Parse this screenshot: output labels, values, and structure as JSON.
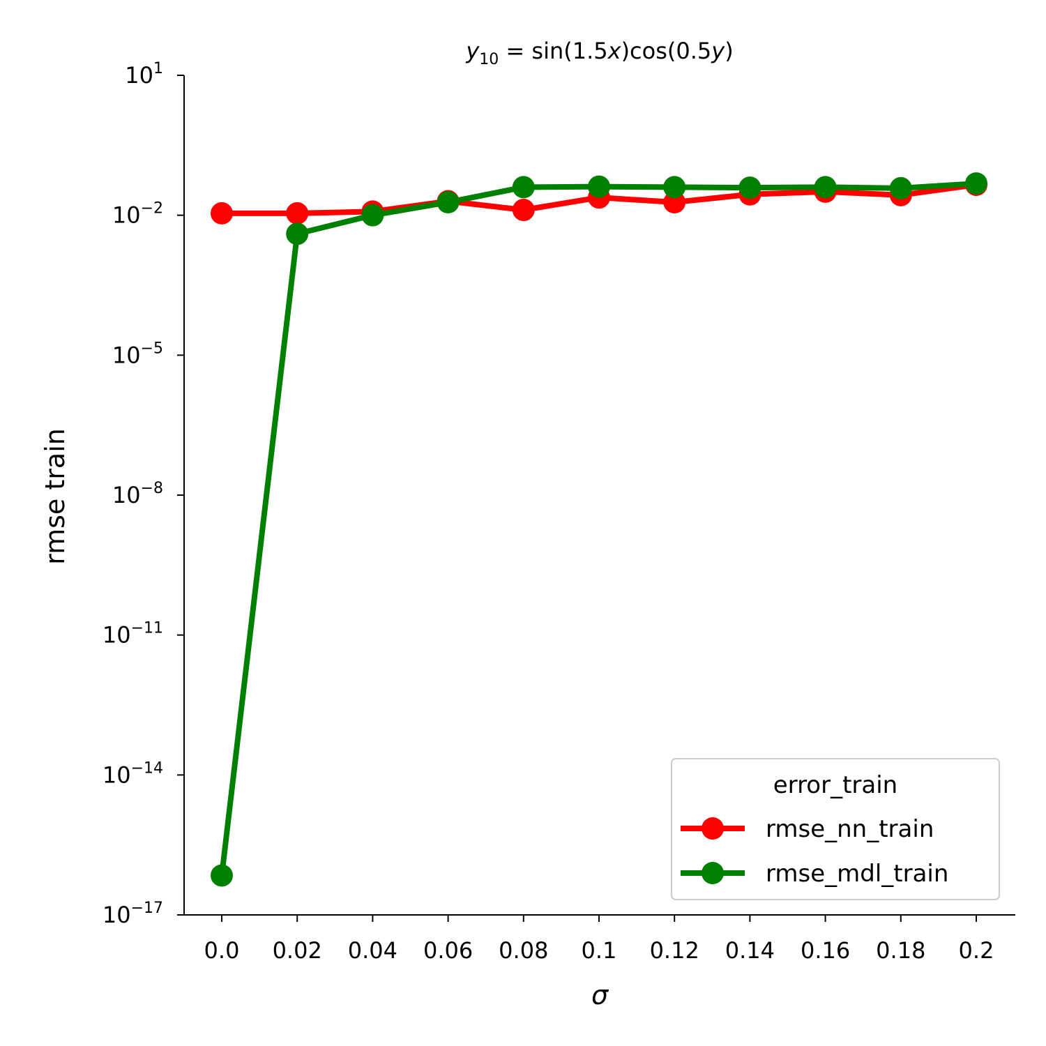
{
  "chart_data": {
    "type": "line",
    "title": {
      "var": "y",
      "sub": "10",
      "eq": " = sin(1.5",
      "x1": "x",
      "mid": ")cos(0.5",
      "x2": "y",
      "end": ")"
    },
    "xlabel": "σ",
    "ylabel": "rmse train",
    "y_scale": "log",
    "ylim_exp": [
      -17,
      1
    ],
    "categories": [
      "0.0",
      "0.02",
      "0.04",
      "0.06",
      "0.08",
      "0.1",
      "0.12",
      "0.14",
      "0.16",
      "0.18",
      "0.2"
    ],
    "y_ticks": [
      {
        "base": "10",
        "exp": "1",
        "value_exp": 1
      },
      {
        "base": "10",
        "exp": "−2",
        "value_exp": -2
      },
      {
        "base": "10",
        "exp": "−5",
        "value_exp": -5
      },
      {
        "base": "10",
        "exp": "−8",
        "value_exp": -8
      },
      {
        "base": "10",
        "exp": "−11",
        "value_exp": -11
      },
      {
        "base": "10",
        "exp": "−14",
        "value_exp": -14
      },
      {
        "base": "10",
        "exp": "−17",
        "value_exp": -17
      }
    ],
    "series": [
      {
        "name": "rmse_nn_train",
        "color": "#ff0000",
        "values": [
          0.011,
          0.011,
          0.012,
          0.02,
          0.013,
          0.024,
          0.019,
          0.028,
          0.032,
          0.027,
          0.045
        ],
        "err_low": [
          0.011,
          0.009,
          0.011,
          0.019,
          0.012,
          0.021,
          0.011,
          0.025,
          0.022,
          0.025,
          0.04
        ],
        "err_high": [
          0.011,
          0.014,
          0.013,
          0.021,
          0.014,
          0.027,
          0.025,
          0.031,
          0.04,
          0.03,
          0.05
        ]
      },
      {
        "name": "rmse_mdl_train",
        "color": "#008000",
        "values": [
          7e-17,
          0.004,
          0.01,
          0.019,
          0.04,
          0.041,
          0.04,
          0.039,
          0.04,
          0.038,
          0.048
        ],
        "err_low": [
          7e-17,
          0.004,
          0.01,
          0.019,
          0.04,
          0.041,
          0.04,
          0.039,
          0.04,
          0.038,
          0.042
        ],
        "err_high": [
          7e-17,
          0.004,
          0.01,
          0.019,
          0.04,
          0.041,
          0.04,
          0.039,
          0.04,
          0.038,
          0.075
        ]
      }
    ],
    "legend": {
      "title": "error_train",
      "placement": "lower-right"
    }
  }
}
